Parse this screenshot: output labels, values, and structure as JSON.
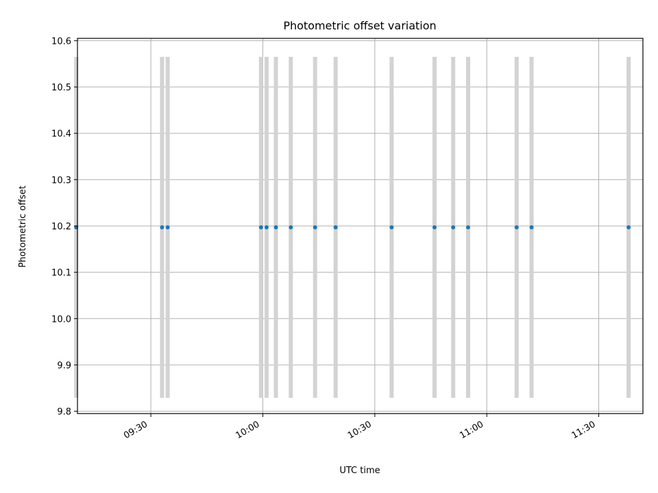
{
  "chart_data": {
    "type": "scatter",
    "title": "Photometric offset variation",
    "xlabel": "UTC time",
    "ylabel": "Photometric offset",
    "xlim": [
      "09:10:20",
      "11:41:50"
    ],
    "ylim": [
      9.795,
      10.605
    ],
    "xticks": [
      "09:30",
      "10:00",
      "10:30",
      "11:00",
      "11:30"
    ],
    "yticks": [
      "9.8",
      "9.9",
      "10.0",
      "10.1",
      "10.2",
      "10.3",
      "10.4",
      "10.5",
      "10.6"
    ],
    "grid": true,
    "series": [
      {
        "x": [
          "09:10:00",
          "09:33:00",
          "09:34:30",
          "09:59:30",
          "10:01:00",
          "10:03:30",
          "10:07:30",
          "10:14:00",
          "10:19:30",
          "10:34:30",
          "10:46:00",
          "10:51:00",
          "10:55:00",
          "11:08:00",
          "11:12:00",
          "11:38:00"
        ],
        "y": [
          10.197,
          10.197,
          10.197,
          10.197,
          10.197,
          10.197,
          10.197,
          10.197,
          10.197,
          10.197,
          10.197,
          10.197,
          10.197,
          10.197,
          10.197,
          10.197
        ],
        "yerr": [
          0.368,
          0.368,
          0.368,
          0.368,
          0.368,
          0.368,
          0.368,
          0.368,
          0.368,
          0.368,
          0.368,
          0.368,
          0.368,
          0.368,
          0.368,
          0.368
        ],
        "color": "#1f77b4",
        "errorbar_color": "#d3d3d3"
      }
    ]
  }
}
